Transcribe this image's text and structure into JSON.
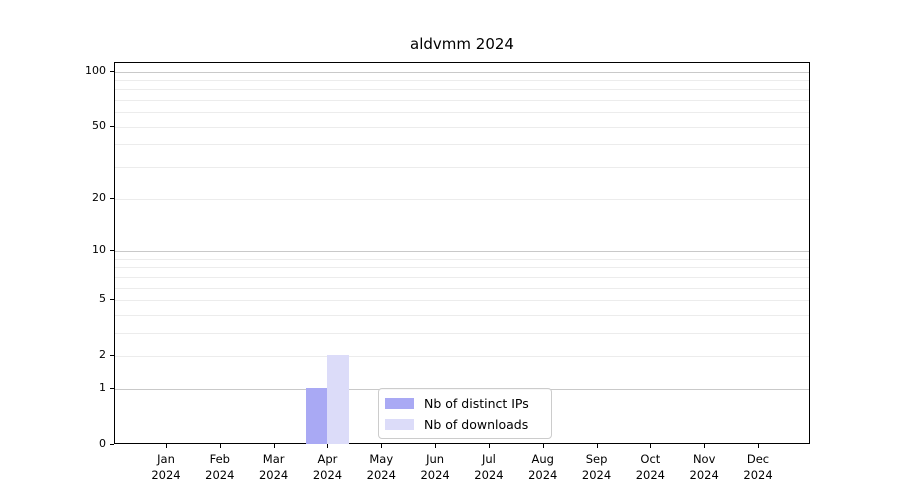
{
  "chart_data": {
    "type": "bar",
    "title": "aldvmm 2024",
    "categories": [
      {
        "m": "Jan",
        "y": "2024"
      },
      {
        "m": "Feb",
        "y": "2024"
      },
      {
        "m": "Mar",
        "y": "2024"
      },
      {
        "m": "Apr",
        "y": "2024"
      },
      {
        "m": "May",
        "y": "2024"
      },
      {
        "m": "Jun",
        "y": "2024"
      },
      {
        "m": "Jul",
        "y": "2024"
      },
      {
        "m": "Aug",
        "y": "2024"
      },
      {
        "m": "Sep",
        "y": "2024"
      },
      {
        "m": "Oct",
        "y": "2024"
      },
      {
        "m": "Nov",
        "y": "2024"
      },
      {
        "m": "Dec",
        "y": "2024"
      }
    ],
    "series": [
      {
        "name": "Nb of distinct IPs",
        "color": "#a9a9f4",
        "values": [
          0,
          0,
          0,
          1,
          0,
          0,
          0,
          0,
          0,
          0,
          0,
          0
        ]
      },
      {
        "name": "Nb of downloads",
        "color": "#dcdcf9",
        "values": [
          0,
          0,
          0,
          2,
          0,
          0,
          0,
          0,
          0,
          0,
          0,
          0
        ]
      }
    ],
    "xlabel": "",
    "ylabel": "",
    "y_scale": "log10(value+1)",
    "ylim": [
      0,
      110
    ],
    "y_ticks": [
      0,
      1,
      2,
      5,
      10,
      20,
      50,
      100
    ],
    "grid_major_values": [
      1,
      10,
      100
    ],
    "grid_minor_values": [
      2,
      3,
      4,
      5,
      6,
      7,
      8,
      9,
      20,
      30,
      40,
      50,
      60,
      70,
      80,
      90
    ],
    "grid": "on",
    "legend_position": "lower center"
  },
  "colors": {
    "grid_minor": "#ececec",
    "grid_major": "#c9c9c9",
    "spine": "#000000",
    "legend_border": "#cccccc"
  }
}
